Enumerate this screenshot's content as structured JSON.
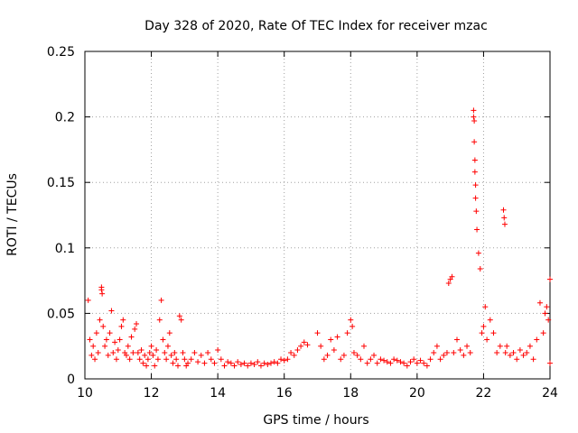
{
  "chart_data": {
    "type": "scatter",
    "title": "Day 328 of 2020, Rate Of TEC Index for receiver mzac",
    "xlabel": "GPS time / hours",
    "ylabel": "ROTI / TECUs",
    "xlim": [
      10,
      24
    ],
    "ylim": [
      0,
      0.25
    ],
    "grid": true,
    "x_ticks": [
      "10",
      "12",
      "14",
      "16",
      "18",
      "20",
      "22",
      "24"
    ],
    "x_tick_values": [
      10,
      12,
      14,
      16,
      18,
      20,
      22,
      24
    ],
    "y_ticks": [
      "0",
      "0.05",
      "0.1",
      "0.15",
      "0.2",
      "0.25"
    ],
    "y_tick_values": [
      0,
      0.05,
      0.1,
      0.15,
      0.2,
      0.25
    ],
    "marker": "plus",
    "marker_color": "#ff0000",
    "series": [
      {
        "name": "ROTI",
        "x": [
          10.1,
          10.15,
          10.2,
          10.25,
          10.3,
          10.35,
          10.4,
          10.45,
          10.5,
          10.5,
          10.52,
          10.55,
          10.6,
          10.65,
          10.7,
          10.75,
          10.8,
          10.85,
          10.9,
          10.95,
          11.0,
          11.05,
          11.1,
          11.15,
          11.2,
          11.25,
          11.3,
          11.35,
          11.4,
          11.45,
          11.5,
          11.55,
          11.6,
          11.65,
          11.7,
          11.75,
          11.8,
          11.85,
          11.9,
          11.95,
          12.0,
          12.05,
          12.1,
          12.15,
          12.2,
          12.25,
          12.3,
          12.35,
          12.4,
          12.45,
          12.5,
          12.55,
          12.6,
          12.65,
          12.7,
          12.75,
          12.8,
          12.85,
          12.9,
          12.95,
          13.0,
          13.05,
          13.1,
          13.2,
          13.3,
          13.4,
          13.5,
          13.6,
          13.7,
          13.8,
          13.9,
          14.0,
          14.1,
          14.2,
          14.3,
          14.4,
          14.5,
          14.6,
          14.7,
          14.8,
          14.9,
          15.0,
          15.1,
          15.2,
          15.3,
          15.4,
          15.5,
          15.6,
          15.7,
          15.8,
          15.9,
          16.0,
          16.1,
          16.2,
          16.3,
          16.4,
          16.5,
          16.6,
          16.7,
          17.0,
          17.1,
          17.2,
          17.3,
          17.4,
          17.5,
          17.6,
          17.7,
          17.8,
          17.9,
          18.0,
          18.05,
          18.1,
          18.2,
          18.3,
          18.4,
          18.5,
          18.6,
          18.7,
          18.8,
          18.9,
          19.0,
          19.1,
          19.2,
          19.3,
          19.4,
          19.5,
          19.6,
          19.7,
          19.8,
          19.9,
          20.0,
          20.1,
          20.2,
          20.3,
          20.4,
          20.5,
          20.6,
          20.7,
          20.8,
          20.9,
          20.95,
          21.0,
          21.05,
          21.1,
          21.2,
          21.3,
          21.4,
          21.5,
          21.6,
          21.7,
          21.7,
          21.72,
          21.72,
          21.74,
          21.74,
          21.76,
          21.76,
          21.78,
          21.8,
          21.85,
          21.9,
          21.95,
          22.0,
          22.05,
          22.1,
          22.2,
          22.3,
          22.4,
          22.5,
          22.6,
          22.62,
          22.64,
          22.66,
          22.7,
          22.8,
          22.9,
          23.0,
          23.1,
          23.2,
          23.3,
          23.4,
          23.5,
          23.6,
          23.7,
          23.8,
          23.85,
          23.9,
          23.95,
          24.0,
          24.0
        ],
        "y": [
          0.06,
          0.03,
          0.018,
          0.025,
          0.015,
          0.035,
          0.02,
          0.045,
          0.07,
          0.068,
          0.065,
          0.04,
          0.025,
          0.03,
          0.018,
          0.035,
          0.052,
          0.02,
          0.028,
          0.015,
          0.022,
          0.03,
          0.04,
          0.045,
          0.02,
          0.018,
          0.025,
          0.015,
          0.032,
          0.02,
          0.038,
          0.042,
          0.02,
          0.015,
          0.022,
          0.012,
          0.018,
          0.01,
          0.015,
          0.02,
          0.025,
          0.018,
          0.01,
          0.022,
          0.015,
          0.045,
          0.06,
          0.03,
          0.02,
          0.015,
          0.025,
          0.035,
          0.018,
          0.012,
          0.02,
          0.015,
          0.01,
          0.048,
          0.045,
          0.02,
          0.015,
          0.01,
          0.012,
          0.015,
          0.02,
          0.013,
          0.018,
          0.012,
          0.02,
          0.015,
          0.012,
          0.022,
          0.015,
          0.01,
          0.013,
          0.012,
          0.01,
          0.013,
          0.011,
          0.012,
          0.01,
          0.012,
          0.011,
          0.013,
          0.01,
          0.012,
          0.011,
          0.012,
          0.013,
          0.012,
          0.015,
          0.014,
          0.015,
          0.02,
          0.018,
          0.022,
          0.025,
          0.028,
          0.026,
          0.035,
          0.025,
          0.015,
          0.018,
          0.03,
          0.022,
          0.032,
          0.015,
          0.018,
          0.035,
          0.045,
          0.04,
          0.02,
          0.018,
          0.015,
          0.025,
          0.012,
          0.015,
          0.018,
          0.012,
          0.015,
          0.014,
          0.013,
          0.012,
          0.015,
          0.014,
          0.013,
          0.012,
          0.01,
          0.013,
          0.015,
          0.012,
          0.014,
          0.012,
          0.01,
          0.015,
          0.02,
          0.025,
          0.015,
          0.018,
          0.02,
          0.073,
          0.076,
          0.078,
          0.02,
          0.03,
          0.022,
          0.018,
          0.025,
          0.02,
          0.205,
          0.2,
          0.197,
          0.181,
          0.167,
          0.158,
          0.148,
          0.138,
          0.128,
          0.114,
          0.096,
          0.084,
          0.035,
          0.04,
          0.055,
          0.03,
          0.045,
          0.035,
          0.02,
          0.025,
          0.129,
          0.123,
          0.118,
          0.02,
          0.025,
          0.018,
          0.02,
          0.015,
          0.022,
          0.018,
          0.02,
          0.025,
          0.015,
          0.03,
          0.058,
          0.035,
          0.05,
          0.055,
          0.045,
          0.012,
          0.076
        ]
      }
    ]
  }
}
